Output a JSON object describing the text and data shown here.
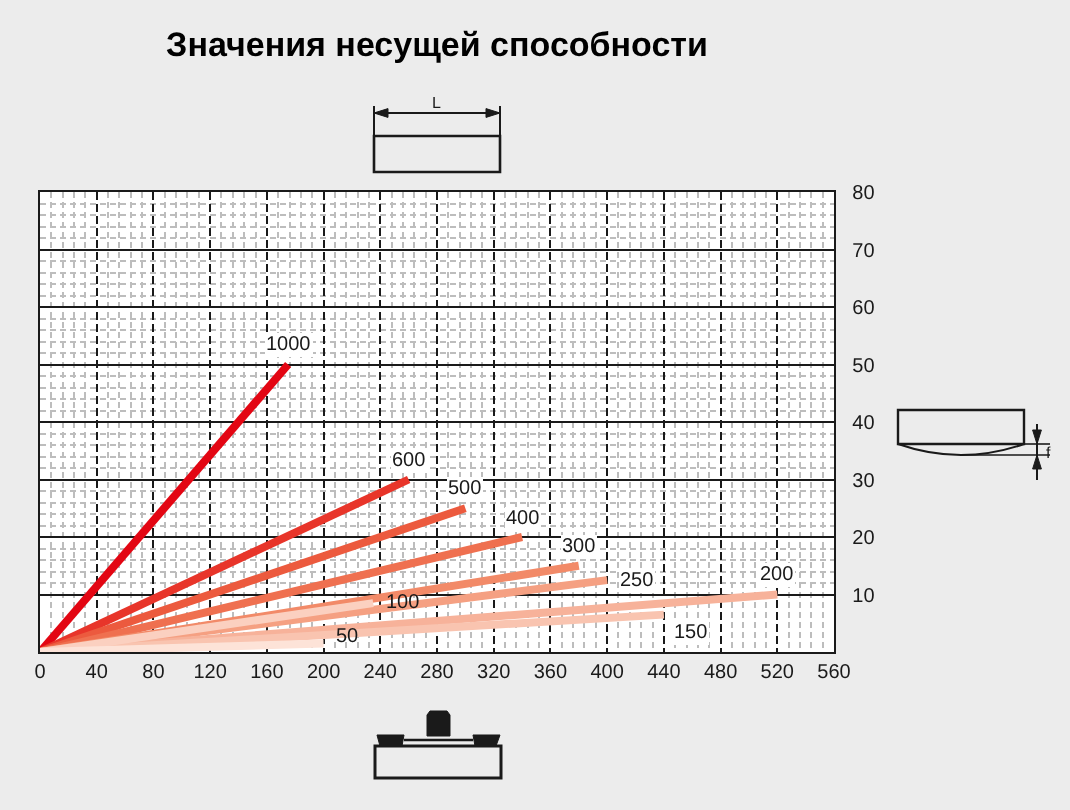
{
  "chart_data": {
    "type": "line",
    "title": "Значения несущей способности",
    "annotations": [
      "L",
      "f"
    ],
    "xlim": [
      0,
      560
    ],
    "xticks": [
      0,
      40,
      80,
      120,
      160,
      200,
      240,
      280,
      320,
      360,
      400,
      440,
      480,
      520,
      560
    ],
    "ylim": [
      0,
      80
    ],
    "yticks": [
      10,
      20,
      30,
      40,
      50,
      60,
      70,
      80
    ],
    "grid": true,
    "legend": false,
    "series": [
      {
        "name": "1000",
        "color": "#e30613",
        "x": [
          0,
          175
        ],
        "values": [
          0,
          50
        ]
      },
      {
        "name": "600",
        "color": "#e8352a",
        "x": [
          0,
          260
        ],
        "values": [
          0,
          30
        ]
      },
      {
        "name": "500",
        "color": "#ec5a3e",
        "x": [
          0,
          300
        ],
        "values": [
          0,
          25
        ]
      },
      {
        "name": "400",
        "color": "#ef7050",
        "x": [
          0,
          340
        ],
        "values": [
          0,
          20
        ]
      },
      {
        "name": "300",
        "color": "#f28a68",
        "x": [
          0,
          380
        ],
        "values": [
          0,
          15
        ]
      },
      {
        "name": "250",
        "color": "#f5a082",
        "x": [
          0,
          400
        ],
        "values": [
          0,
          12.5
        ]
      },
      {
        "name": "200",
        "color": "#f7b29a",
        "x": [
          0,
          520
        ],
        "values": [
          0,
          10
        ]
      },
      {
        "name": "150",
        "color": "#f9c4b0",
        "x": [
          0,
          440
        ],
        "values": [
          0,
          6.5
        ]
      },
      {
        "name": "100",
        "color": "#fbd0c0",
        "x": [
          0,
          235
        ],
        "values": [
          0,
          8.5
        ]
      },
      {
        "name": "50",
        "color": "#fde3d8",
        "x": [
          0,
          200
        ],
        "values": [
          0,
          1.5
        ]
      }
    ]
  }
}
